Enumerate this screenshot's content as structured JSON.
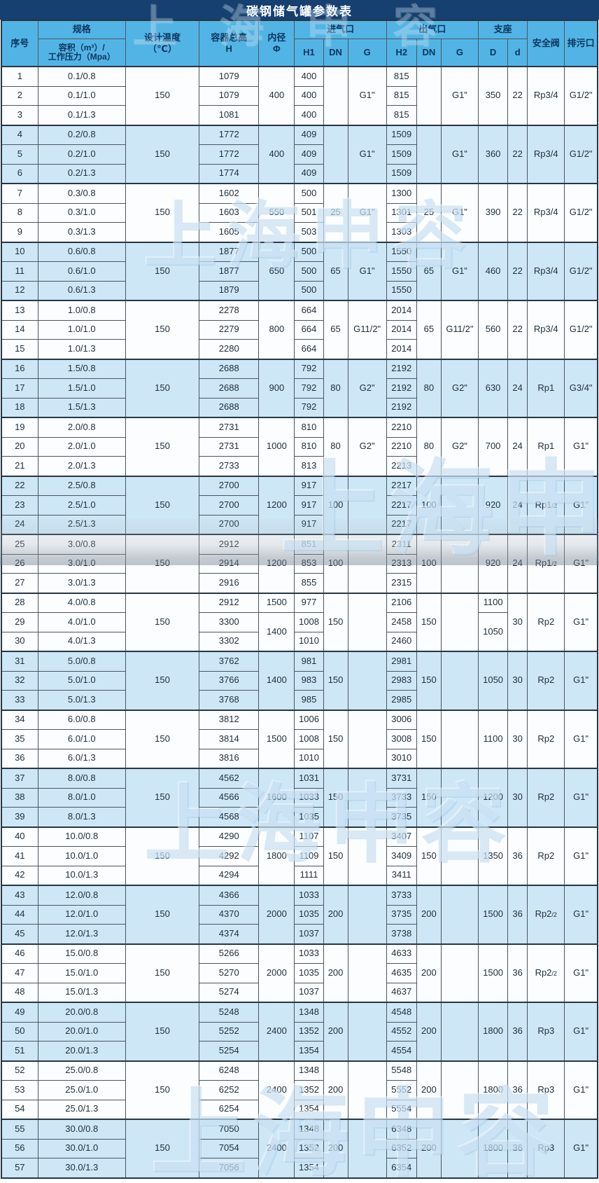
{
  "title": "碳钢储气罐参数表",
  "watermark": "上海申容",
  "colors": {
    "title_bar": "#16406f",
    "header_bg": "#52b4e5",
    "header_text": "#0c3560",
    "row_blue": "#cde7f7",
    "row_white": "#fbfdfe",
    "border_dark": "#273643"
  },
  "header": {
    "serial": "序号",
    "spec": "规格",
    "spec_sub_l1": "容积（m³）/",
    "spec_sub_l2": "工作压力（Mpa）",
    "temp_l1": "设计温度",
    "temp_l2": "（℃）",
    "height_l1": "容器总高",
    "height_l2": "H",
    "dia_l1": "内径",
    "dia_l2": "Φ",
    "inlet": "进气口",
    "outlet": "出气口",
    "support": "支座",
    "h1": "H1",
    "dn_in": "DN",
    "g_in": "G",
    "h2": "H2",
    "dn_out": "DN",
    "g_out": "G",
    "D": "D",
    "d": "d",
    "safety": "安全阀",
    "drain": "排污口"
  },
  "table": {
    "groups": [
      {
        "shade": "white",
        "temp": "150",
        "phi": "400",
        "dn_in": "",
        "g_in": "G1\"",
        "dn_out": "",
        "g_out": "G1\"",
        "D": "350",
        "d": "22",
        "safety": "Rp3/4",
        "safety_sub": "",
        "drain": "G1/2\"",
        "rows": [
          [
            "1",
            "0.1/0.8",
            "1079",
            "400",
            "815"
          ],
          [
            "2",
            "0.1/1.0",
            "1079",
            "400",
            "815"
          ],
          [
            "3",
            "0.1/1.3",
            "1081",
            "400",
            "815"
          ]
        ]
      },
      {
        "shade": "blue",
        "temp": "150",
        "phi": "400",
        "dn_in": "",
        "g_in": "G1\"",
        "dn_out": "",
        "g_out": "G1\"",
        "D": "360",
        "d": "22",
        "safety": "Rp3/4",
        "safety_sub": "",
        "drain": "G1/2\"",
        "rows": [
          [
            "4",
            "0.2/0.8",
            "1772",
            "409",
            "1509"
          ],
          [
            "5",
            "0.2/1.0",
            "1772",
            "409",
            "1509"
          ],
          [
            "6",
            "0.2/1.3",
            "1774",
            "409",
            "1509"
          ]
        ]
      },
      {
        "shade": "white",
        "temp": "150",
        "phi": "550",
        "dn_in": "25",
        "g_in": "G1\"",
        "dn_out": "25",
        "g_out": "G1\"",
        "D": "390",
        "d": "22",
        "safety": "Rp3/4",
        "safety_sub": "",
        "drain": "G1/2\"",
        "rows": [
          [
            "7",
            "0.3/0.8",
            "1602",
            "500",
            "1300"
          ],
          [
            "8",
            "0.3/1.0",
            "1603",
            "501",
            "1301"
          ],
          [
            "9",
            "0.3/1.3",
            "1605",
            "503",
            "1303"
          ]
        ]
      },
      {
        "shade": "blue",
        "temp": "150",
        "phi": "650",
        "dn_in": "65",
        "g_in": "G1\"",
        "dn_out": "65",
        "g_out": "G1\"",
        "D": "460",
        "d": "22",
        "safety": "Rp3/4",
        "safety_sub": "",
        "drain": "G1/2\"",
        "rows": [
          [
            "10",
            "0.6/0.8",
            "1877",
            "500",
            "1550"
          ],
          [
            "11",
            "0.6/1.0",
            "1877",
            "500",
            "1550"
          ],
          [
            "12",
            "0.6/1.3",
            "1879",
            "500",
            "1550"
          ]
        ]
      },
      {
        "shade": "white",
        "temp": "150",
        "phi": "800",
        "dn_in": "65",
        "g_in": "G11/2\"",
        "dn_out": "65",
        "g_out": "G11/2\"",
        "D": "560",
        "d": "22",
        "safety": "Rp3/4",
        "safety_sub": "",
        "drain": "G1/2\"",
        "rows": [
          [
            "13",
            "1.0/0.8",
            "2278",
            "664",
            "2014"
          ],
          [
            "14",
            "1.0/1.0",
            "2279",
            "664",
            "2014"
          ],
          [
            "15",
            "1.0/1.3",
            "2280",
            "664",
            "2014"
          ]
        ]
      },
      {
        "shade": "blue",
        "temp": "150",
        "phi": "900",
        "dn_in": "80",
        "g_in": "G2\"",
        "dn_out": "80",
        "g_out": "G2\"",
        "D": "630",
        "d": "24",
        "safety": "Rp1",
        "safety_sub": "",
        "drain": "G3/4\"",
        "rows": [
          [
            "16",
            "1.5/0.8",
            "2688",
            "792",
            "2192"
          ],
          [
            "17",
            "1.5/1.0",
            "2688",
            "792",
            "2192"
          ],
          [
            "18",
            "1.5/1.3",
            "2688",
            "792",
            "2192"
          ]
        ]
      },
      {
        "shade": "white",
        "temp": "150",
        "phi": "1000",
        "dn_in": "80",
        "g_in": "G2\"",
        "dn_out": "80",
        "g_out": "G2\"",
        "D": "700",
        "d": "24",
        "safety": "Rp1",
        "safety_sub": "",
        "drain": "G1\"",
        "rows": [
          [
            "19",
            "2.0/0.8",
            "2731",
            "810",
            "2210"
          ],
          [
            "20",
            "2.0/1.0",
            "2731",
            "810",
            "2210"
          ],
          [
            "21",
            "2.0/1.3",
            "2733",
            "813",
            "2213"
          ]
        ]
      },
      {
        "shade": "blue",
        "temp": "150",
        "phi": "1200",
        "dn_in": "100",
        "g_in": "",
        "dn_out": "100",
        "g_out": "",
        "D": "920",
        "d": "24",
        "safety": "Rp1",
        "safety_sub": "/2",
        "drain": "G1\"",
        "rows": [
          [
            "22",
            "2.5/0.8",
            "2700",
            "917",
            "2217"
          ],
          [
            "23",
            "2.5/1.0",
            "2700",
            "917",
            "2217"
          ],
          [
            "24",
            "2.5/1.3",
            "2700",
            "917",
            "2217"
          ]
        ]
      },
      {
        "shade": "white",
        "temp": "150",
        "phi": "1200",
        "dn_in": "100",
        "g_in": "",
        "dn_out": "100",
        "g_out": "",
        "D": "920",
        "d": "24",
        "safety": "Rp1",
        "safety_sub": "/2",
        "drain": "G1\"",
        "rows": [
          [
            "25",
            "3.0/0.8",
            "2912",
            "851",
            "2311"
          ],
          [
            "26",
            "3.0/1.0",
            "2914",
            "853",
            "2313"
          ],
          [
            "27",
            "3.0/1.3",
            "2916",
            "855",
            "2315"
          ]
        ]
      },
      {
        "shade": "white",
        "temp": "150",
        "phi": "1500",
        "phi_rest": "1400",
        "dn_in": "150",
        "g_in": "",
        "dn_out": "150",
        "g_out": "",
        "D": "1100",
        "D_rest": "1050",
        "d": "30",
        "safety": "Rp2",
        "safety_sub": "",
        "drain": "G1\"",
        "rows": [
          [
            "28",
            "4.0/0.8",
            "2912",
            "977",
            "2106"
          ],
          [
            "29",
            "4.0/1.0",
            "3300",
            "1008",
            "2458"
          ],
          [
            "30",
            "4.0/1.3",
            "3302",
            "1010",
            "2460"
          ]
        ]
      },
      {
        "shade": "blue",
        "temp": "150",
        "phi": "1400",
        "dn_in": "150",
        "g_in": "",
        "dn_out": "150",
        "g_out": "",
        "D": "1050",
        "d": "30",
        "safety": "Rp2",
        "safety_sub": "",
        "drain": "G1\"",
        "rows": [
          [
            "31",
            "5.0/0.8",
            "3762",
            "981",
            "2981"
          ],
          [
            "32",
            "5.0/1.0",
            "3766",
            "983",
            "2983"
          ],
          [
            "33",
            "5.0/1.3",
            "3768",
            "985",
            "2985"
          ]
        ]
      },
      {
        "shade": "white",
        "temp": "150",
        "phi": "1500",
        "dn_in": "150",
        "g_in": "",
        "dn_out": "150",
        "g_out": "",
        "D": "1100",
        "d": "30",
        "safety": "Rp2",
        "safety_sub": "",
        "drain": "G1\"",
        "rows": [
          [
            "34",
            "6.0/0.8",
            "3812",
            "1006",
            "3006"
          ],
          [
            "35",
            "6.0/1.0",
            "3814",
            "1008",
            "3008"
          ],
          [
            "36",
            "6.0/1.3",
            "3816",
            "1010",
            "3010"
          ]
        ]
      },
      {
        "shade": "blue",
        "temp": "150",
        "phi": "1600",
        "dn_in": "150",
        "g_in": "",
        "dn_out": "150",
        "g_out": "",
        "D": "1200",
        "d": "30",
        "safety": "Rp2",
        "safety_sub": "",
        "drain": "G1\"",
        "rows": [
          [
            "37",
            "8.0/0.8",
            "4562",
            "1031",
            "3731"
          ],
          [
            "38",
            "8.0/1.0",
            "4566",
            "1033",
            "3733"
          ],
          [
            "39",
            "8.0/1.3",
            "4568",
            "1035",
            "3735"
          ]
        ]
      },
      {
        "shade": "white",
        "temp": "150",
        "phi": "1800",
        "dn_in": "150",
        "g_in": "",
        "dn_out": "150",
        "g_out": "",
        "D": "1350",
        "d": "36",
        "safety": "Rp2",
        "safety_sub": "",
        "drain": "G1\"",
        "rows": [
          [
            "40",
            "10.0/0.8",
            "4290",
            "1107",
            "3407"
          ],
          [
            "41",
            "10.0/1.0",
            "4292",
            "1109",
            "3409"
          ],
          [
            "42",
            "10.0/1.3",
            "4294",
            "1111",
            "3411"
          ]
        ]
      },
      {
        "shade": "blue",
        "temp": "150",
        "phi": "2000",
        "dn_in": "200",
        "g_in": "",
        "dn_out": "200",
        "g_out": "",
        "D": "1500",
        "d": "36",
        "safety": "Rp2",
        "safety_sub": "/2",
        "drain": "G1\"",
        "rows": [
          [
            "43",
            "12.0/0.8",
            "4366",
            "1033",
            "3733"
          ],
          [
            "44",
            "12.0/1.0",
            "4370",
            "1035",
            "3735"
          ],
          [
            "45",
            "12.0/1.3",
            "4374",
            "1037",
            "3738"
          ]
        ]
      },
      {
        "shade": "white",
        "temp": "150",
        "phi": "2000",
        "dn_in": "200",
        "g_in": "",
        "dn_out": "200",
        "g_out": "",
        "D": "1500",
        "d": "36",
        "safety": "Rp2",
        "safety_sub": "/2",
        "drain": "G1\"",
        "rows": [
          [
            "46",
            "15.0/0.8",
            "5266",
            "1033",
            "4633"
          ],
          [
            "47",
            "15.0/1.0",
            "5270",
            "1035",
            "4635"
          ],
          [
            "48",
            "15.0/1.3",
            "5274",
            "1037",
            "4637"
          ]
        ]
      },
      {
        "shade": "blue",
        "temp": "150",
        "phi": "2400",
        "dn_in": "200",
        "g_in": "",
        "dn_out": "200",
        "g_out": "",
        "D": "1800",
        "d": "36",
        "safety": "Rp3",
        "safety_sub": "",
        "drain": "G1\"",
        "rows": [
          [
            "49",
            "20.0/0.8",
            "5248",
            "1348",
            "4548"
          ],
          [
            "50",
            "20.0/1.0",
            "5252",
            "1352",
            "4552"
          ],
          [
            "51",
            "20.0/1.3",
            "5254",
            "1354",
            "4554"
          ]
        ]
      },
      {
        "shade": "white",
        "temp": "150",
        "phi": "2400",
        "dn_in": "200",
        "g_in": "",
        "dn_out": "200",
        "g_out": "",
        "D": "1800",
        "d": "36",
        "safety": "Rp3",
        "safety_sub": "",
        "drain": "G1\"",
        "rows": [
          [
            "52",
            "25.0/0.8",
            "6248",
            "1348",
            "5548"
          ],
          [
            "53",
            "25.0/1.0",
            "6252",
            "1352",
            "5552"
          ],
          [
            "54",
            "25.0/1.3",
            "6254",
            "1354",
            "5554"
          ]
        ]
      },
      {
        "shade": "blue",
        "temp": "150",
        "phi": "2400",
        "dn_in": "200",
        "g_in": "",
        "dn_out": "200",
        "g_out": "",
        "D": "1800",
        "d": "36",
        "safety": "Rp3",
        "safety_sub": "",
        "drain": "G1\"",
        "rows": [
          [
            "55",
            "30.0/0.8",
            "7050",
            "1348",
            "6348"
          ],
          [
            "56",
            "30.0/1.0",
            "7054",
            "1352",
            "6352"
          ],
          [
            "57",
            "30.0/1.3",
            "7056",
            "1354",
            "6354"
          ]
        ]
      }
    ]
  }
}
